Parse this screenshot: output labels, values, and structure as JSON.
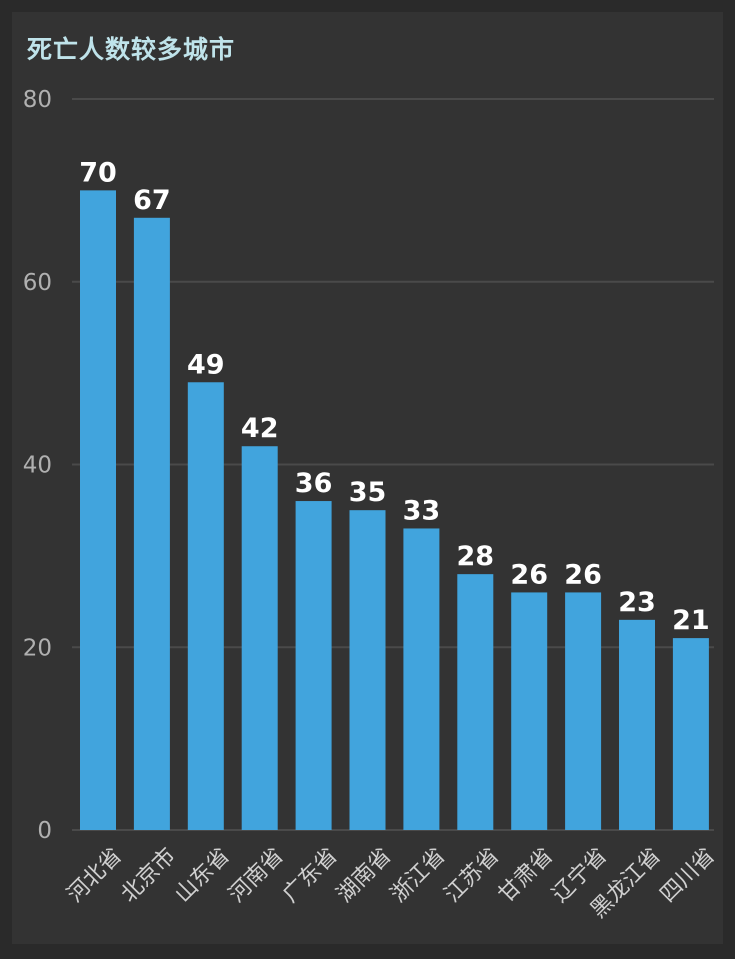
{
  "chart_data": {
    "type": "bar",
    "title": "死亡人数较多城市",
    "categories": [
      "河北省",
      "北京市",
      "山东省",
      "河南省",
      "广东省",
      "湖南省",
      "浙江省",
      "江苏省",
      "甘肃省",
      "辽宁省",
      "黑龙江省",
      "四川省"
    ],
    "values": [
      70,
      67,
      49,
      42,
      36,
      35,
      33,
      28,
      26,
      26,
      23,
      21
    ],
    "ylim": [
      0,
      80
    ],
    "yticks": [
      0,
      20,
      40,
      60,
      80
    ],
    "grid": true,
    "xlabel": "",
    "ylabel": "",
    "colors": {
      "bar": "#41a4dd",
      "grid": "#4a4a4a",
      "background": "#333333",
      "title": "#bfe3ea"
    }
  }
}
